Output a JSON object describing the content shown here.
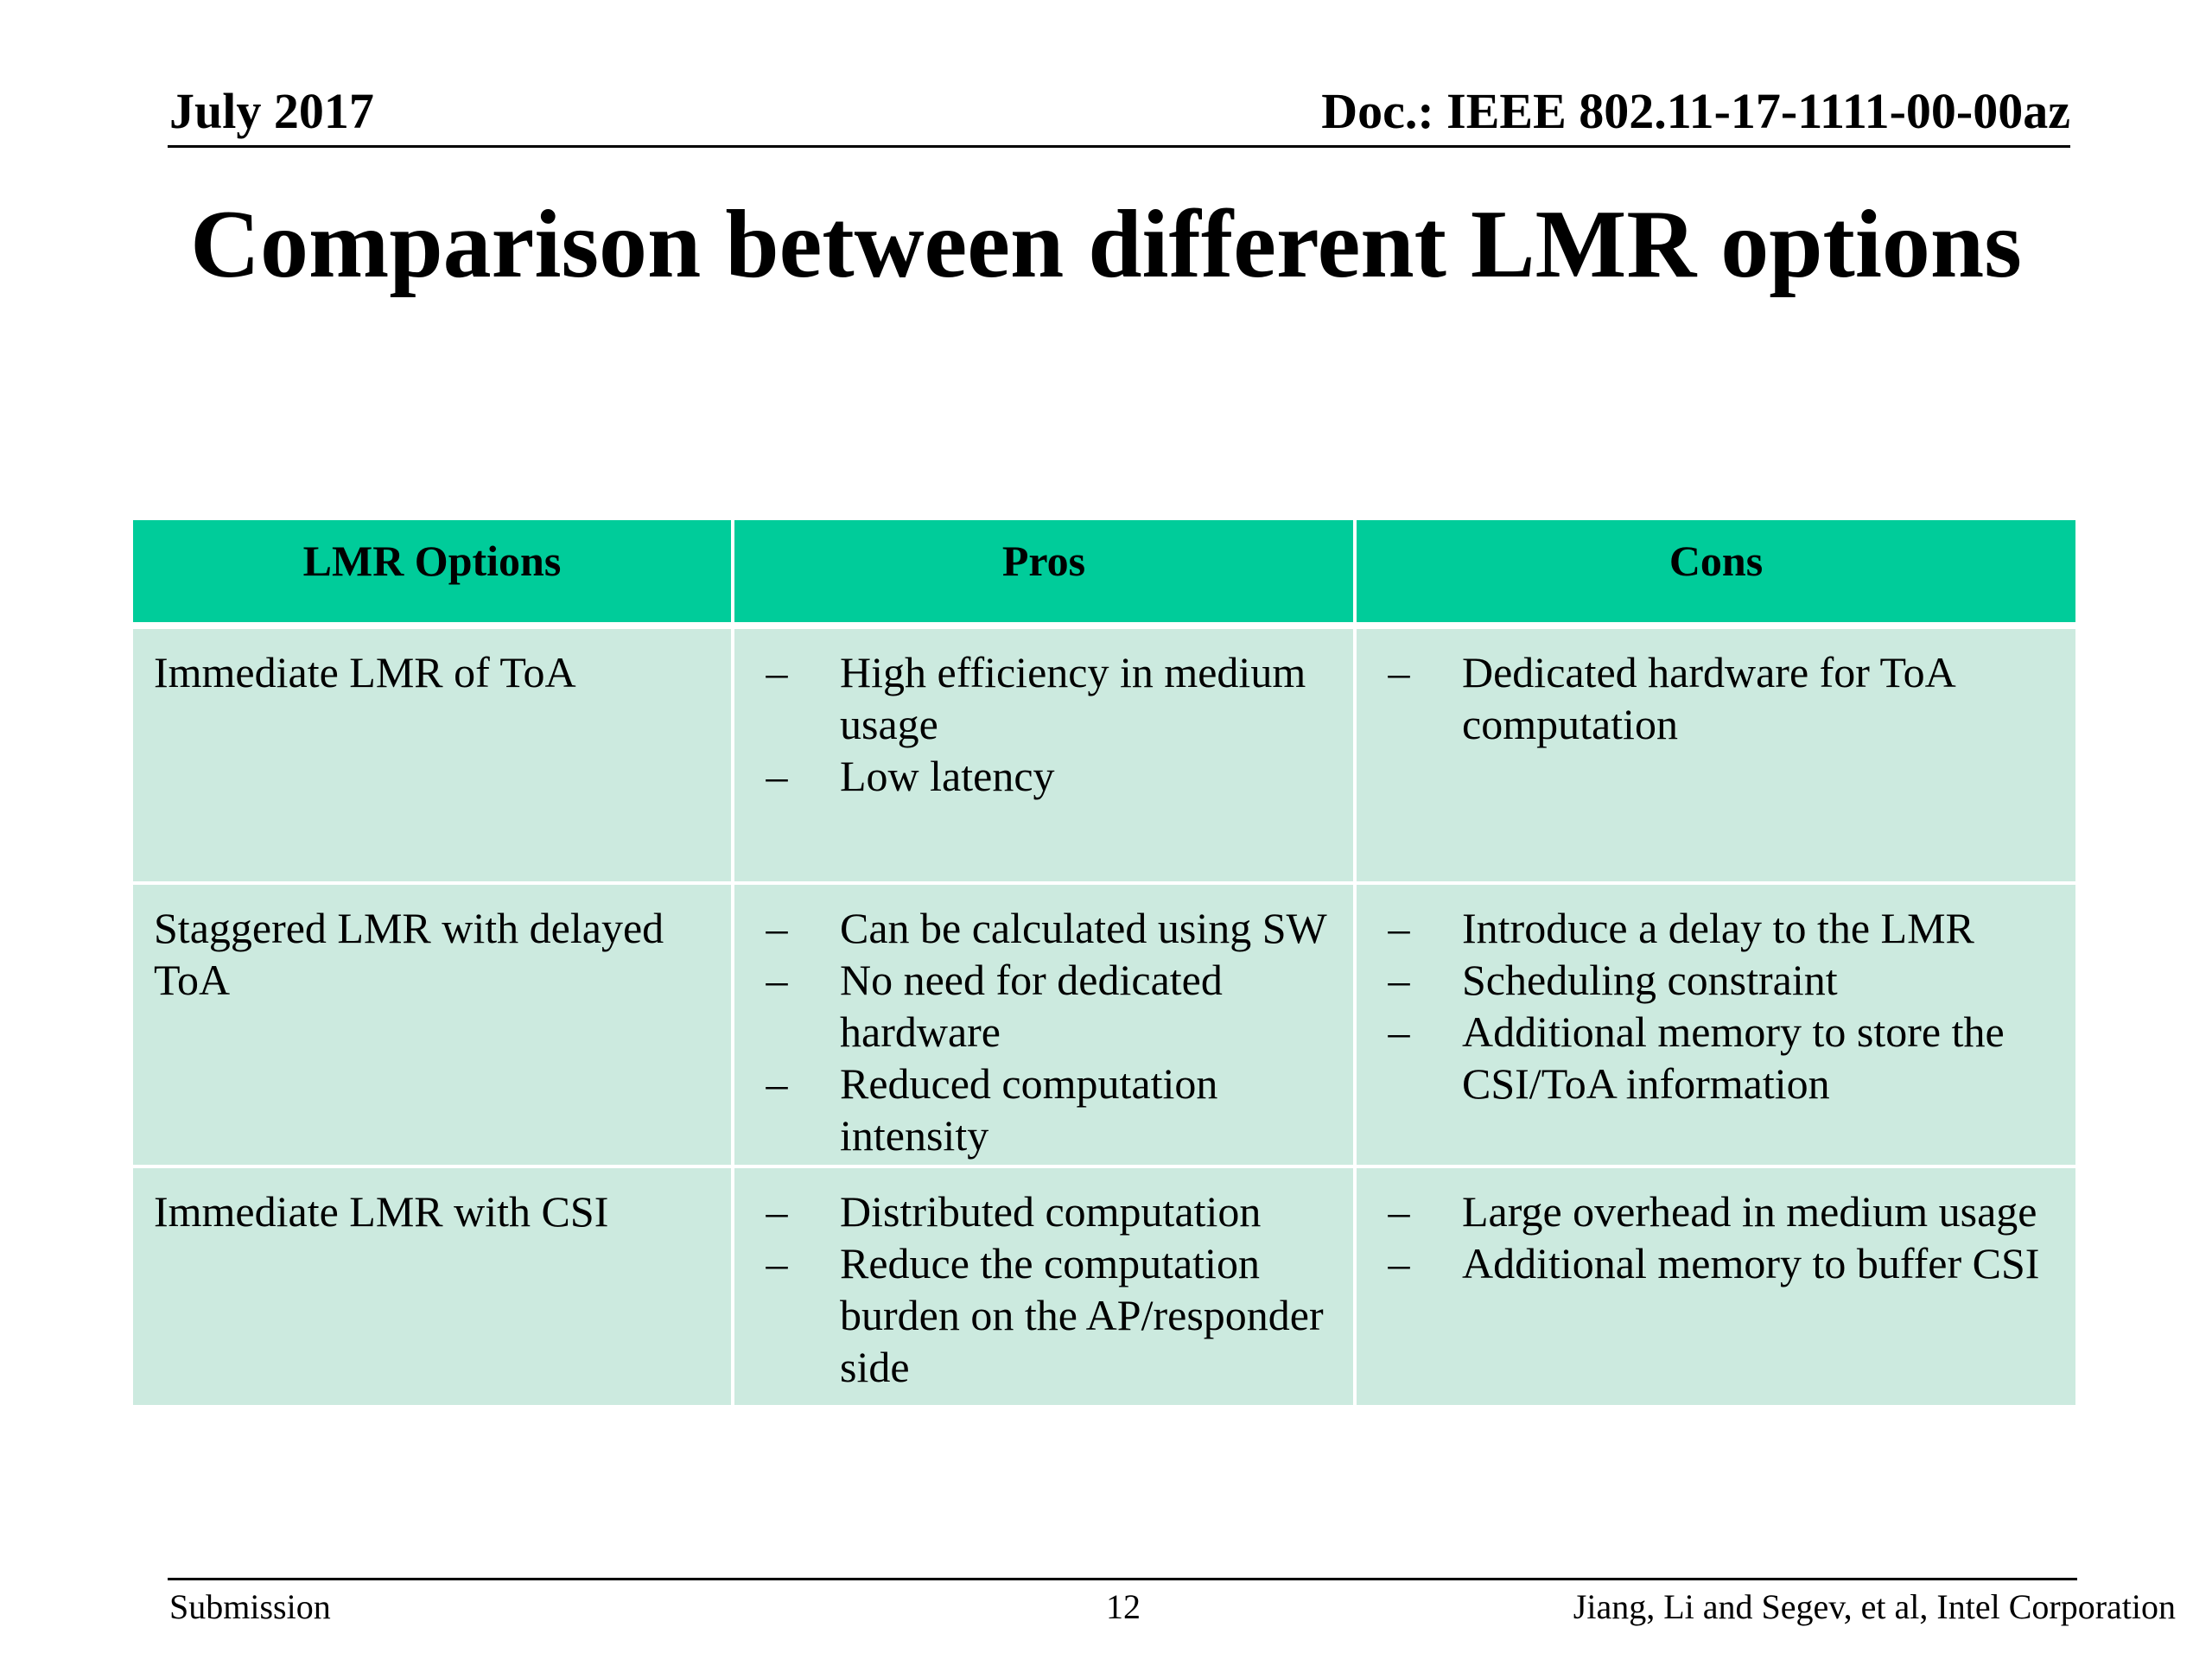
{
  "header": {
    "date": "July 2017",
    "doc_id": "Doc.: IEEE 802.11-17-1111-00-00az"
  },
  "title": "Comparison between different LMR options",
  "table": {
    "headers": [
      "LMR Options",
      "Pros",
      "Cons"
    ],
    "rows": [
      {
        "option": "Immediate LMR of ToA",
        "pros": [
          "High efficiency in medium usage",
          "Low latency"
        ],
        "cons": [
          "Dedicated hardware for ToA computation"
        ]
      },
      {
        "option": "Staggered LMR with delayed ToA",
        "pros": [
          "Can be calculated using SW",
          "No need for dedicated hardware",
          "Reduced computation intensity"
        ],
        "cons": [
          "Introduce a delay to the LMR",
          "Scheduling constraint",
          "Additional memory to store the CSI/ToA information"
        ]
      },
      {
        "option": "Immediate LMR with CSI",
        "pros": [
          "Distributed computation",
          "Reduce the computation burden on the AP/responder side"
        ],
        "cons": [
          "Large overhead in medium usage",
          "Additional memory to buffer CSI"
        ]
      }
    ],
    "bullet_symbol": "–",
    "colors": {
      "header_bg": "#00cc9a",
      "body_bg": "#cceadf"
    }
  },
  "footer": {
    "left": "Submission",
    "page_number": "12",
    "right": "Jiang, Li and Segev, et al, Intel Corporation"
  }
}
